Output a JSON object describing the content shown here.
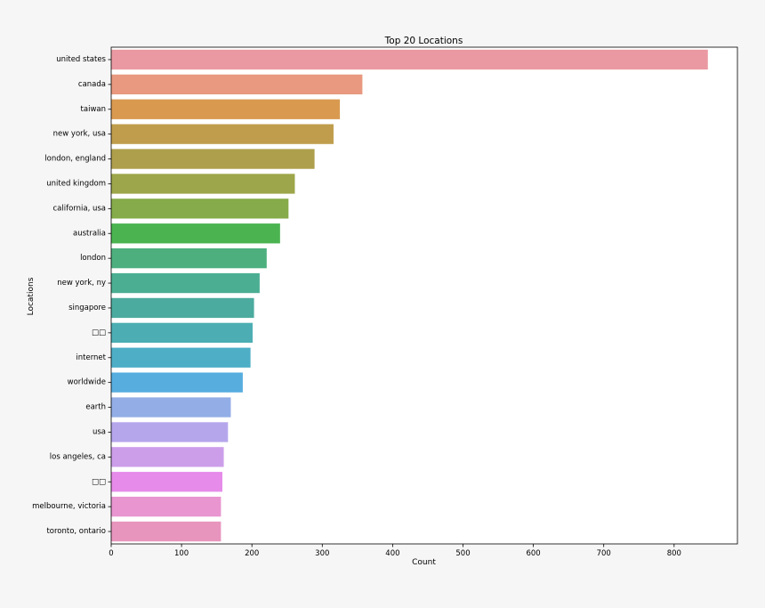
{
  "chart_data": {
    "type": "bar",
    "orientation": "horizontal",
    "title": "Top 20 Locations",
    "xlabel": "Count",
    "ylabel": "Locations",
    "xlim": [
      0,
      890
    ],
    "x_ticks": [
      0,
      100,
      200,
      300,
      400,
      500,
      600,
      700,
      800
    ],
    "grid": false,
    "categories": [
      "united states",
      "canada",
      "taiwan",
      "new york, usa",
      "london, england",
      "united kingdom",
      "california, usa",
      "australia",
      "london",
      "new york, ny",
      "singapore",
      "□□",
      "internet",
      "worldwide",
      "earth",
      "usa",
      "los angeles, ca",
      "□□",
      "melbourne, victoria",
      "toronto, ontario"
    ],
    "values": [
      848,
      357,
      325,
      316,
      289,
      261,
      252,
      240,
      221,
      211,
      203,
      201,
      198,
      187,
      170,
      166,
      160,
      158,
      156,
      156
    ],
    "colors": [
      "#ea99a2",
      "#e8997f",
      "#d99a50",
      "#bf9d4c",
      "#ae9f4c",
      "#9da64a",
      "#85ab4a",
      "#4bb451",
      "#4daf7e",
      "#4bae93",
      "#4cab9f",
      "#4caeb3",
      "#4eaec6",
      "#58addf",
      "#93aee6",
      "#b5a6ec",
      "#cc9eea",
      "#e68bea",
      "#e995d0",
      "#e895be"
    ]
  }
}
